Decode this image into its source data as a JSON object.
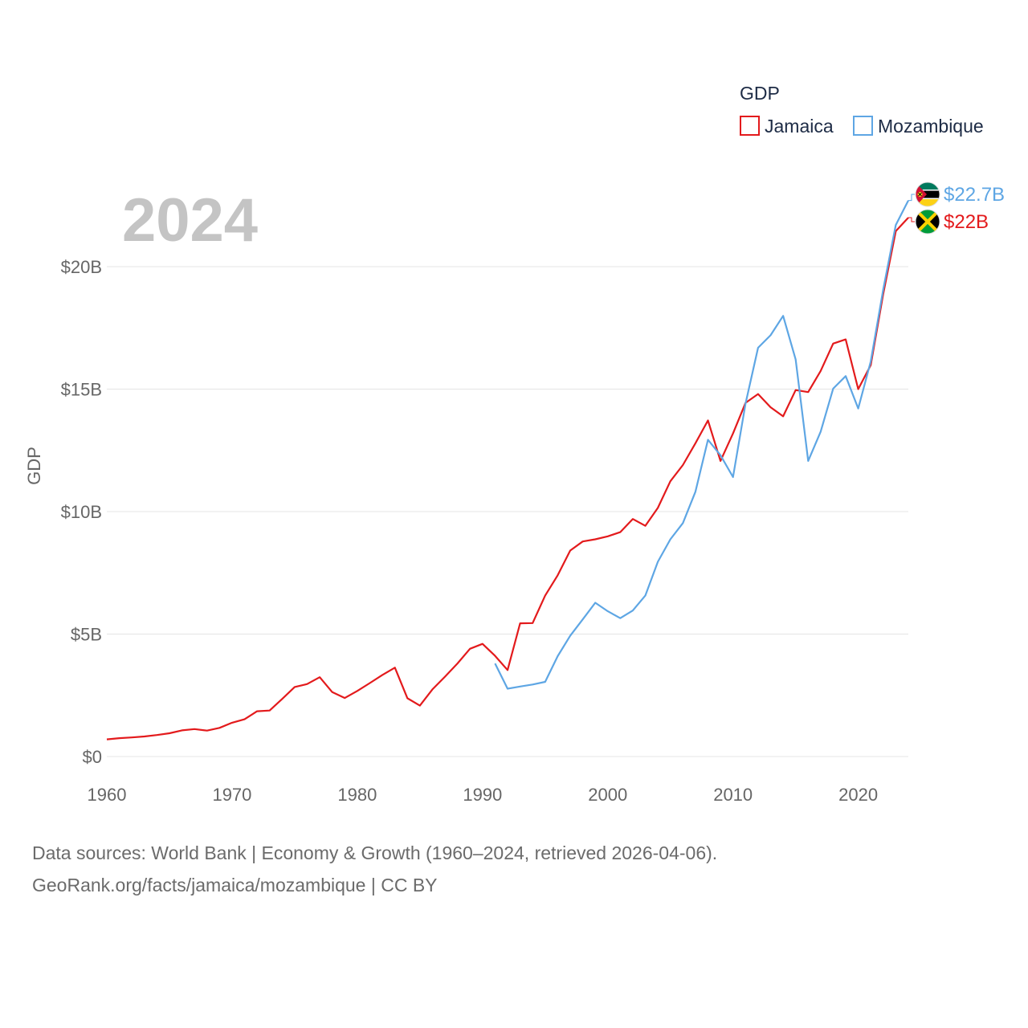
{
  "chart_data": {
    "type": "line",
    "title": "GDP",
    "year_label": "2024",
    "ylabel": "GDP",
    "xlabel": "",
    "xlim": [
      1960,
      2024
    ],
    "ylim": [
      0,
      20
    ],
    "y_unit": "billions USD",
    "x_ticks": [
      "1960",
      "1970",
      "1980",
      "1990",
      "2000",
      "2010",
      "2020"
    ],
    "y_ticks": [
      {
        "value": 0,
        "label": "$0"
      },
      {
        "value": 5,
        "label": "$5B"
      },
      {
        "value": 10,
        "label": "$10B"
      },
      {
        "value": 15,
        "label": "$15B"
      },
      {
        "value": 20,
        "label": "$20B"
      }
    ],
    "grid": true,
    "legend_position": "top-right",
    "series": [
      {
        "name": "Jamaica",
        "color": "#e31a1c",
        "end_label": "$22B",
        "flag": "jamaica-flag",
        "x": [
          1960,
          1961,
          1962,
          1963,
          1964,
          1965,
          1966,
          1967,
          1968,
          1969,
          1970,
          1971,
          1972,
          1973,
          1974,
          1975,
          1976,
          1977,
          1978,
          1979,
          1980,
          1981,
          1982,
          1983,
          1984,
          1985,
          1986,
          1987,
          1988,
          1989,
          1990,
          1991,
          1992,
          1993,
          1994,
          1995,
          1996,
          1997,
          1998,
          1999,
          2000,
          2001,
          2002,
          2003,
          2004,
          2005,
          2006,
          2007,
          2008,
          2009,
          2010,
          2011,
          2012,
          2013,
          2014,
          2015,
          2016,
          2017,
          2018,
          2019,
          2020,
          2021,
          2022,
          2023,
          2024
        ],
        "values": [
          0.7,
          0.75,
          0.78,
          0.82,
          0.88,
          0.95,
          1.07,
          1.12,
          1.06,
          1.17,
          1.38,
          1.52,
          1.85,
          1.88,
          2.35,
          2.84,
          2.96,
          3.24,
          2.63,
          2.39,
          2.68,
          3.0,
          3.33,
          3.63,
          2.38,
          2.08,
          2.74,
          3.26,
          3.8,
          4.4,
          4.6,
          4.11,
          3.53,
          5.44,
          5.45,
          6.57,
          7.4,
          8.41,
          8.78,
          8.87,
          8.99,
          9.16,
          9.7,
          9.42,
          10.15,
          11.24,
          11.9,
          12.79,
          13.72,
          12.07,
          13.19,
          14.44,
          14.8,
          14.26,
          13.89,
          14.96,
          14.88,
          15.74,
          16.86,
          17.03,
          15.0,
          15.98,
          18.9,
          21.45,
          22.0
        ]
      },
      {
        "name": "Mozambique",
        "color": "#5ea6e4",
        "end_label": "$22.7B",
        "flag": "mozambique-flag",
        "x": [
          1991,
          1992,
          1993,
          1994,
          1995,
          1996,
          1997,
          1998,
          1999,
          2000,
          2001,
          2002,
          2003,
          2004,
          2005,
          2006,
          2007,
          2008,
          2009,
          2010,
          2011,
          2012,
          2013,
          2014,
          2015,
          2016,
          2017,
          2018,
          2019,
          2020,
          2021,
          2022,
          2023,
          2024
        ],
        "values": [
          3.8,
          2.77,
          2.86,
          2.94,
          3.05,
          4.1,
          4.93,
          5.6,
          6.28,
          5.93,
          5.65,
          5.96,
          6.57,
          7.95,
          8.87,
          9.53,
          10.81,
          12.93,
          12.3,
          11.41,
          14.41,
          16.69,
          17.2,
          17.99,
          16.21,
          12.07,
          13.26,
          15.02,
          15.53,
          14.21,
          16.13,
          19.08,
          21.7,
          22.7
        ]
      }
    ]
  },
  "footer": {
    "source_line": "Data sources: World Bank | Economy & Growth (1960–2024, retrieved 2026-04-06).",
    "credit_line": "GeoRank.org/facts/jamaica/mozambique | CC BY"
  }
}
